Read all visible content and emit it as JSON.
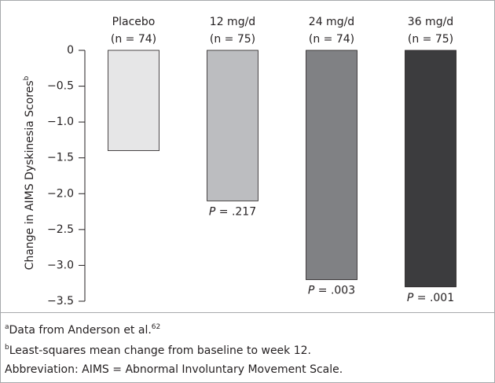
{
  "chart_data": {
    "type": "bar",
    "categories": [
      "Placebo",
      "12 mg/d",
      "24 mg/d",
      "36 mg/d"
    ],
    "n_labels": [
      "(n = 74)",
      "(n = 75)",
      "(n = 74)",
      "(n = 75)"
    ],
    "values": [
      -1.4,
      -2.1,
      -3.2,
      -3.3
    ],
    "colors": [
      "#e6e6e7",
      "#bcbdc0",
      "#808184",
      "#3c3c3e"
    ],
    "p_labels": [
      null,
      "P = .217",
      "P = .003",
      "P = .001"
    ],
    "y_label": "Change in AIMS Dyskinesia Scores",
    "y_label_note": "b",
    "ylim": [
      0,
      -3.5
    ],
    "yticks": [
      0,
      {
        "value": -0.5,
        "label": "−0.5"
      },
      {
        "value": -1.0,
        "label": "−1.0"
      },
      {
        "value": -1.5,
        "label": "−1.5"
      },
      {
        "value": -2.0,
        "label": "−2.0"
      },
      {
        "value": -2.5,
        "label": "−2.5"
      },
      {
        "value": -3.0,
        "label": "−3.0"
      },
      {
        "value": -3.5,
        "label": "−3.5"
      }
    ],
    "grid": false
  },
  "footnotes": [
    {
      "mark": "a",
      "text": "Data from Anderson et al.",
      "ref": "62"
    },
    {
      "mark": "b",
      "text": "Least-squares mean change from baseline to week 12."
    },
    {
      "text": "Abbreviation: AIMS = Abnormal Involuntary Movement Scale."
    }
  ]
}
